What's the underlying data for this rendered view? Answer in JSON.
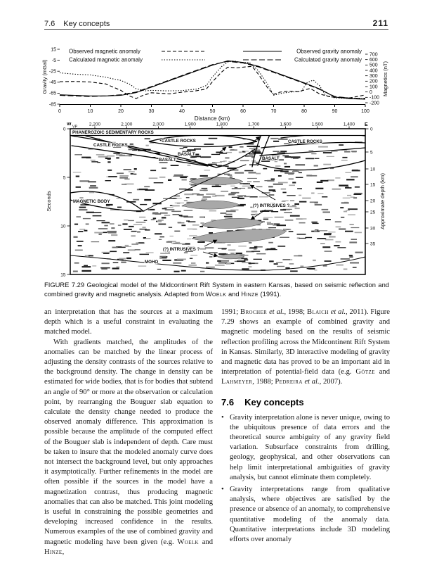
{
  "header": {
    "section_num": "7.6",
    "section_title": "Key concepts",
    "page_number": "211"
  },
  "chart_data": {
    "type": "line",
    "xlabel": "Distance (km)",
    "x_ticks": [
      0,
      10,
      20,
      30,
      40,
      50,
      60,
      70,
      80,
      90,
      100
    ],
    "xlim": [
      0,
      100
    ],
    "left_axis": {
      "label": "Gravity (mGal)",
      "ticks": [
        15,
        -5,
        -25,
        -45,
        -65,
        -85
      ],
      "range": [
        15,
        -85
      ]
    },
    "right_axis": {
      "label": "Magnetics (nT)",
      "ticks": [
        700,
        600,
        500,
        400,
        300,
        200,
        100,
        0,
        -100,
        -200
      ],
      "range": [
        700,
        -200
      ]
    },
    "grid": false,
    "legend_position": "top",
    "series": [
      {
        "name": "Observed magnetic anomaly",
        "axis": "right",
        "style": "dash",
        "x": [
          0,
          5,
          10,
          15,
          20,
          23,
          25,
          27,
          30,
          33,
          36,
          40,
          44,
          48,
          50,
          53,
          55,
          58,
          60,
          63,
          65,
          68,
          70,
          72,
          75,
          78,
          80,
          82,
          85,
          88,
          90,
          95,
          100
        ],
        "y": [
          190,
          195,
          185,
          150,
          30,
          -80,
          -120,
          -70,
          -15,
          -25,
          -35,
          -5,
          15,
          55,
          190,
          370,
          460,
          445,
          460,
          475,
          330,
          80,
          -45,
          -5,
          15,
          5,
          35,
          65,
          -35,
          -85,
          -100,
          -110,
          -55
        ]
      },
      {
        "name": "Calculated magnetic anomaly",
        "axis": "right",
        "style": "dot",
        "x": [
          0,
          5,
          10,
          15,
          18,
          20,
          23,
          25,
          28,
          30,
          35,
          40,
          45,
          48,
          50,
          53,
          55,
          57,
          60,
          62,
          65,
          68,
          70,
          73,
          76,
          79,
          81,
          83,
          85,
          87,
          90,
          95,
          100
        ],
        "y": [
          355,
          330,
          315,
          275,
          235,
          215,
          140,
          60,
          20,
          30,
          20,
          25,
          55,
          120,
          280,
          470,
          555,
          575,
          540,
          550,
          395,
          145,
          -60,
          -20,
          0,
          10,
          175,
          220,
          120,
          -60,
          -110,
          -120,
          -115
        ]
      },
      {
        "name": "Observed gravity anomaly",
        "axis": "left",
        "style": "solid",
        "x": [
          0,
          5,
          10,
          15,
          20,
          25,
          30,
          35,
          40,
          45,
          50,
          55,
          60,
          65,
          70,
          75,
          80,
          85,
          90,
          95,
          100
        ],
        "y": [
          -68,
          -69,
          -70,
          -70,
          -69,
          -64,
          -54,
          -44,
          -34,
          -24,
          -14,
          -6,
          -9,
          -16,
          -26,
          -36,
          -46,
          -57,
          -72,
          -75,
          -76
        ]
      },
      {
        "name": "Calculated gravity anomaly",
        "axis": "left",
        "style": "longdash",
        "x": [
          0,
          5,
          10,
          15,
          20,
          25,
          30,
          35,
          40,
          45,
          50,
          55,
          60,
          65,
          70,
          75,
          80,
          85,
          90,
          95,
          100
        ],
        "y": [
          -69,
          -70,
          -71,
          -70,
          -68,
          -63,
          -53,
          -43,
          -33,
          -23,
          -13,
          -7,
          -10,
          -17,
          -27,
          -37,
          -47,
          -58,
          -71,
          -74,
          -75
        ]
      }
    ]
  },
  "section_figure": {
    "west": "W",
    "vp_label": "VP",
    "east": "E",
    "top_ticks": [
      "2,200",
      "2,100",
      "2,000",
      "1,900",
      "1,800",
      "1,700",
      "1,600",
      "1,500",
      "1,400"
    ],
    "left_axis_label": "Seconds",
    "left_ticks": [
      "0",
      "5",
      "10",
      "15"
    ],
    "right_axis_label": "Approximate depth (km)",
    "right_ticks": [
      "0",
      "5",
      "10",
      "15",
      "20",
      "25",
      "30",
      "35"
    ],
    "labels": {
      "phanerozoic": "PHANEROZOIC SEDIMENTARY ROCKS",
      "castle_left": "CASTLE ROCKS",
      "castle_center": "CASTLE ROCKS",
      "castle_right": "CASTLE ROCKS",
      "basalt_center_upper": "BASALT",
      "basalt_center_lower": "BASALT",
      "basalt_right": "BASALT",
      "magnetic_body": "MAGNETIC BODY",
      "intrusives_upper": "(?) INTRUSIVES ?",
      "intrusives_lower": "(?) INTRUSIVES ?",
      "moho": "MOHO"
    }
  },
  "caption_segments": [
    {
      "t": "FIGURE 7.29  Geological model of the Midcontinent Rift System in eastern Kansas, based on seismic reflection and combined gravity and magnetic analysis. Adapted from "
    },
    {
      "t": "Woelk",
      "sc": true
    },
    {
      "t": " and "
    },
    {
      "t": "Hinze",
      "sc": true
    },
    {
      "t": " (1991)."
    }
  ],
  "body": {
    "left_paragraphs": [
      {
        "indent": false,
        "segments": [
          {
            "t": "an interpretation that has the sources at a maximum depth which is a useful constraint in evaluating the matched model."
          }
        ]
      },
      {
        "indent": true,
        "segments": [
          {
            "t": "With gradients matched, the amplitudes of the anomalies can be matched by the linear process of adjusting the density contrasts of the sources relative to the background density. The change in density can be estimated for wide bodies, that is for bodies that subtend an angle of 90° or more at the observation or calculation point, by rearranging the Bouguer slab equation to calculate the density change needed to produce the observed anomaly difference. This approximation is possible because the amplitude of the computed effect of the Bouguer slab is independent of depth. Care must be taken to insure that the modeled anomaly curve does not intersect the background level, but only approaches it asymptotically. Further refinements in the model are often possible if the sources in the model have a magnetization contrast, thus producing magnetic anomalies that can also be matched. This joint modeling is useful in constraining the possible geometries and developing increased confidence in the results. Numerous examples of the use of combined gravity and magnetic modeling have been given (e.g. "
          },
          {
            "t": "Woelk",
            "sc": true
          },
          {
            "t": " and "
          },
          {
            "t": "Hinze",
            "sc": true
          },
          {
            "t": ","
          }
        ]
      }
    ],
    "right_paragraph": {
      "indent": false,
      "segments": [
        {
          "t": "1991; "
        },
        {
          "t": "Brocher",
          "sc": true
        },
        {
          "t": " et al.",
          "i": true
        },
        {
          "t": ", 1998; "
        },
        {
          "t": "Blaich",
          "sc": true
        },
        {
          "t": " et al.",
          "i": true
        },
        {
          "t": ", 2011). Figure 7.29 shows an example of combined gravity and magnetic modeling based on the results of seismic reflection profiling across the Midcontinent Rift System in Kansas. Similarly, 3D interactive modeling of gravity and magnetic data has proved to be an important aid in interpretation of potential-field data (e.g. "
        },
        {
          "t": "Götze",
          "sc": true
        },
        {
          "t": " and "
        },
        {
          "t": "Lahmeyer",
          "sc": true
        },
        {
          "t": ", 1988; "
        },
        {
          "t": "Pedreira",
          "sc": true
        },
        {
          "t": " et al.",
          "i": true
        },
        {
          "t": ", 2007)."
        }
      ]
    },
    "heading_num": "7.6",
    "heading_title": "Key concepts",
    "bullets": [
      [
        {
          "t": "Gravity interpretation alone is never unique, owing to the ubiquitous presence of data errors and the theoretical source ambiguity of any gravity field variation. Subsurface constraints from drilling, geology, geophysical, and other observations can help limit interpretational ambiguities of gravity analysis, but cannot eliminate them completely."
        }
      ],
      [
        {
          "t": "Gravity interpretations range from qualitative analysis, where objectives are satisfied by the presence or absence of an anomaly, to comprehensive quantitative modeling of the anomaly data. Quantitative interpretations include 3D modeling efforts over anomaly"
        }
      ]
    ]
  }
}
